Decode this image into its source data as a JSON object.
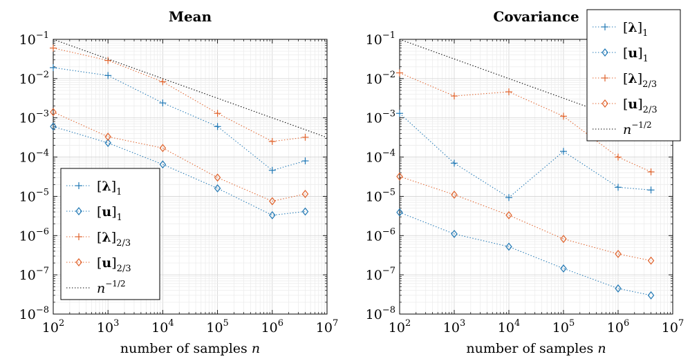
{
  "chart_data": [
    {
      "type": "line",
      "title": "Mean",
      "xlabel": "number of samples n",
      "ylabel": "",
      "x_scale": "log",
      "y_scale": "log",
      "xlim": [
        100,
        10000000
      ],
      "ylim": [
        1e-08,
        0.1
      ],
      "x_ticks": [
        100,
        1000,
        10000,
        100000,
        1000000,
        10000000
      ],
      "y_ticks": [
        1e-08,
        1e-07,
        1e-06,
        1e-05,
        0.0001,
        0.001,
        0.01,
        0.1
      ],
      "grid": true,
      "legend_position": "bottom-left",
      "x": [
        100,
        1000,
        10000,
        100000,
        1000000,
        4000000
      ],
      "series": [
        {
          "name": "[λ]₁",
          "marker": "plus",
          "color": "#1f77b4",
          "values": [
            0.019,
            0.012,
            0.0024,
            0.0006,
            4.6e-05,
            8e-05
          ]
        },
        {
          "name": "[u]₁",
          "marker": "diamond",
          "color": "#1f77b4",
          "values": [
            0.0006,
            0.00023,
            6.5e-05,
            1.6e-05,
            3.3e-06,
            4.1e-06
          ]
        },
        {
          "name": "[λ]₂/₃",
          "marker": "plus",
          "color": "#e0622b",
          "values": [
            0.06,
            0.029,
            0.0083,
            0.0013,
            0.00025,
            0.00032
          ]
        },
        {
          "name": "[u]₂/₃",
          "marker": "diamond",
          "color": "#e0622b",
          "values": [
            0.0014,
            0.00033,
            0.00017,
            3e-05,
            7.5e-06,
            1.15e-05
          ]
        },
        {
          "name": "n^(−1/2)",
          "marker": "none",
          "color": "#000000",
          "x": [
            100,
            10000000
          ],
          "values": [
            0.1,
            0.000316
          ]
        }
      ]
    },
    {
      "type": "line",
      "title": "Covariance",
      "xlabel": "number of samples n",
      "ylabel": "",
      "x_scale": "log",
      "y_scale": "log",
      "xlim": [
        100,
        10000000
      ],
      "ylim": [
        1e-08,
        0.1
      ],
      "x_ticks": [
        100,
        1000,
        10000,
        100000,
        1000000,
        10000000
      ],
      "y_ticks": [
        1e-08,
        1e-07,
        1e-06,
        1e-05,
        0.0001,
        0.001,
        0.01,
        0.1
      ],
      "grid": true,
      "legend_position": "top-right",
      "x": [
        100,
        1000,
        10000,
        100000,
        1000000,
        4000000
      ],
      "series": [
        {
          "name": "[λ]₁",
          "marker": "plus",
          "color": "#1f77b4",
          "values": [
            0.0013,
            7e-05,
            9.3e-06,
            0.00014,
            1.7e-05,
            1.45e-05
          ]
        },
        {
          "name": "[u]₁",
          "marker": "diamond",
          "color": "#1f77b4",
          "values": [
            3.9e-06,
            1.1e-06,
            5.2e-07,
            1.45e-07,
            4.5e-08,
            3e-08
          ]
        },
        {
          "name": "[λ]₂/₃",
          "marker": "plus",
          "color": "#e0622b",
          "values": [
            0.014,
            0.0036,
            0.0046,
            0.0011,
            0.0001,
            4.2e-05
          ]
        },
        {
          "name": "[u]₂/₃",
          "marker": "diamond",
          "color": "#e0622b",
          "values": [
            3.2e-05,
            1.1e-05,
            3.3e-06,
            8.2e-07,
            3.4e-07,
            2.3e-07
          ]
        },
        {
          "name": "n^(−1/2)",
          "marker": "none",
          "color": "#000000",
          "x": [
            100,
            10000000
          ],
          "values": [
            0.1,
            0.000316
          ]
        }
      ]
    }
  ]
}
